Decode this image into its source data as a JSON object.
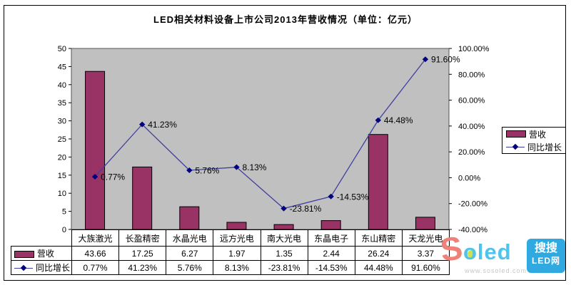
{
  "title": "LED相关材料设备上市公司2013年营收情况（单位：亿元）",
  "chart_data": {
    "type": "bar+line combo",
    "title": "LED相关材料设备上市公司2013年营收情况（单位：亿元）",
    "categories": [
      "大族激光",
      "长盈精密",
      "水晶光电",
      "远方光电",
      "南大光电",
      "东晶电子",
      "东山精密",
      "天龙光电"
    ],
    "series": [
      {
        "name": "营收",
        "type": "bar",
        "axis": "left",
        "values": [
          43.66,
          17.25,
          6.27,
          1.97,
          1.35,
          2.44,
          26.24,
          3.37
        ],
        "labels": [
          "43.66",
          "17.25",
          "6.27",
          "1.97",
          "1.35",
          "2.44",
          "26.24",
          "3.37"
        ],
        "color": "#993366"
      },
      {
        "name": "同比增长",
        "type": "line",
        "axis": "right",
        "values": [
          0.77,
          41.23,
          5.76,
          8.13,
          -23.81,
          -14.53,
          44.48,
          91.6
        ],
        "labels": [
          "0.77%",
          "41.23%",
          "5.76%",
          "8.13%",
          "-23.81%",
          "-14.53%",
          "44.48%",
          "91.60%"
        ],
        "color": "#3f3fa0",
        "marker_color": "#000080"
      }
    ],
    "left_axis": {
      "min": 0,
      "max": 50,
      "step": 5,
      "ticks": [
        "0",
        "5",
        "10",
        "15",
        "20",
        "25",
        "30",
        "35",
        "40",
        "45",
        "50"
      ]
    },
    "right_axis": {
      "min": -40,
      "max": 100,
      "step": 20,
      "ticks_top_down": [
        "100.00%",
        "80.00%",
        "60.00%",
        "40.00%",
        "20.00%",
        "0.00%",
        "-20.00%",
        "-40.00%"
      ]
    },
    "plot_bg": "#c0c0c0",
    "grid": "off",
    "legend_position": "right",
    "legend": [
      "营收",
      "同比增长"
    ]
  },
  "legend": {
    "items": [
      {
        "label": "营收"
      },
      {
        "label": "同比增长"
      }
    ]
  },
  "table": {
    "columns": [
      "大族激光",
      "长盈精密",
      "水晶光电",
      "远方光电",
      "南大光电",
      "东晶电子",
      "东山精密",
      "天龙光电"
    ],
    "rows": [
      {
        "header": "营收",
        "swatch": "bar",
        "cells": [
          "43.66",
          "17.25",
          "6.27",
          "1.97",
          "1.35",
          "2.44",
          "26.24",
          "3.37"
        ]
      },
      {
        "header": "同比增长",
        "swatch": "line",
        "cells": [
          "0.77%",
          "41.23%",
          "5.76%",
          "8.13%",
          "-23.81%",
          "-14.53%",
          "44.48%",
          "91.60%"
        ]
      }
    ]
  },
  "watermark": {
    "logo_s": "S",
    "logo_oled": "oled",
    "url": "www.sosoled.com",
    "box_line1": "搜搜",
    "box_line2": "LED网"
  },
  "colors": {
    "bar": "#993366",
    "line": "#3f3fa0",
    "marker": "#000080",
    "plot_bg": "#c0c0c0",
    "logo_s": "#ee8178",
    "logo_oled": "#4fc3ea",
    "logo_box": "#2fa9e0"
  }
}
